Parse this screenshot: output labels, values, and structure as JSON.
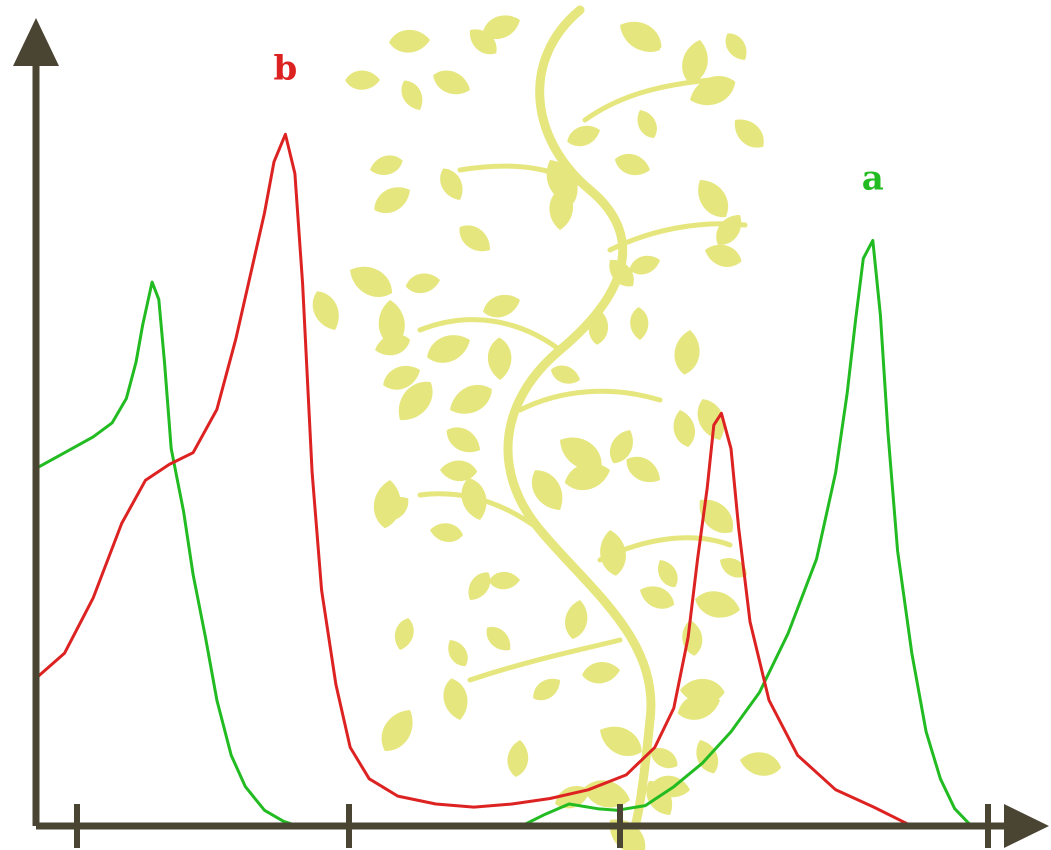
{
  "colors": {
    "background": "#ffffff",
    "axis": "#4a4532",
    "series_a": "#22bb22",
    "series_b": "#dd2222",
    "decoration": "#e6e67e"
  },
  "decoration": {
    "icon": "leafy-vine-icon"
  },
  "chart_data": {
    "type": "line",
    "title": "",
    "xlabel": "",
    "ylabel": "",
    "x_ticks": [
      "",
      "",
      "",
      ""
    ],
    "xlim": [
      0,
      100
    ],
    "ylim": [
      0,
      100
    ],
    "grid": false,
    "legend": "none",
    "series": [
      {
        "name": "a",
        "color": "#22bb22",
        "points": [
          [
            0,
            45.5
          ],
          [
            3,
            47.5
          ],
          [
            6,
            49.5
          ],
          [
            8,
            51.3
          ],
          [
            9.5,
            54.4
          ],
          [
            10.5,
            59.0
          ],
          [
            11.2,
            63.7
          ],
          [
            12.2,
            69.2
          ],
          [
            12.9,
            67.0
          ],
          [
            13.5,
            59.0
          ],
          [
            14.2,
            48.0
          ],
          [
            15.5,
            40.0
          ],
          [
            16.5,
            32.0
          ],
          [
            17.8,
            24.0
          ],
          [
            19,
            16.0
          ],
          [
            20.5,
            9.0
          ],
          [
            22,
            5.0
          ],
          [
            24,
            2.0
          ],
          [
            26,
            0.6
          ],
          [
            27,
            0.2
          ],
          [
            30,
            0
          ],
          [
            51,
            0
          ],
          [
            53.5,
            1.5
          ],
          [
            56,
            2.8
          ],
          [
            59,
            2.2
          ],
          [
            61,
            2.0
          ],
          [
            64,
            2.6
          ],
          [
            67,
            5.0
          ],
          [
            70,
            8.0
          ],
          [
            73,
            12.0
          ],
          [
            76,
            17.0
          ],
          [
            79,
            24.5
          ],
          [
            82,
            34.0
          ],
          [
            84,
            45.0
          ],
          [
            85.2,
            55.0
          ],
          [
            86.1,
            64.5
          ],
          [
            86.9,
            72.2
          ],
          [
            87.9,
            74.5
          ],
          [
            88.7,
            65.0
          ],
          [
            89.5,
            50.0
          ],
          [
            90.5,
            35.0
          ],
          [
            92,
            22.0
          ],
          [
            93.5,
            12.0
          ],
          [
            95,
            6.0
          ],
          [
            96.5,
            2.2
          ],
          [
            98,
            0.3
          ],
          [
            99,
            0
          ]
        ]
      },
      {
        "name": "b",
        "color": "#dd2222",
        "points": [
          [
            0,
            18.8
          ],
          [
            3,
            22.0
          ],
          [
            6,
            29.0
          ],
          [
            9,
            38.5
          ],
          [
            11.5,
            44.0
          ],
          [
            14,
            46.0
          ],
          [
            16.5,
            47.5
          ],
          [
            19,
            53.0
          ],
          [
            21,
            62.0
          ],
          [
            22.5,
            70.0
          ],
          [
            24,
            78.0
          ],
          [
            25,
            84.5
          ],
          [
            26.2,
            88.0
          ],
          [
            27.2,
            83.0
          ],
          [
            28,
            69.0
          ],
          [
            29,
            45.0
          ],
          [
            30,
            30.0
          ],
          [
            31.5,
            18.0
          ],
          [
            33,
            10.0
          ],
          [
            35,
            6.0
          ],
          [
            38,
            3.8
          ],
          [
            42,
            2.8
          ],
          [
            46,
            2.4
          ],
          [
            50,
            2.8
          ],
          [
            54,
            3.5
          ],
          [
            58,
            4.6
          ],
          [
            62,
            6.5
          ],
          [
            65,
            10.0
          ],
          [
            67,
            15.0
          ],
          [
            68.5,
            24.0
          ],
          [
            69.5,
            34.0
          ],
          [
            70.5,
            43.0
          ],
          [
            71.2,
            51.0
          ],
          [
            72.0,
            52.5
          ],
          [
            73.0,
            48.0
          ],
          [
            73.8,
            38.0
          ],
          [
            75,
            26.0
          ],
          [
            77,
            16.0
          ],
          [
            80,
            9.0
          ],
          [
            84,
            4.6
          ],
          [
            88,
            2.4
          ],
          [
            91,
            0.6
          ],
          [
            92,
            0
          ]
        ]
      }
    ],
    "annotations": [
      {
        "text": "b",
        "series": "b",
        "x": 26.2,
        "y": 95
      },
      {
        "text": "a",
        "series": "a",
        "x": 87.9,
        "y": 81
      }
    ]
  }
}
